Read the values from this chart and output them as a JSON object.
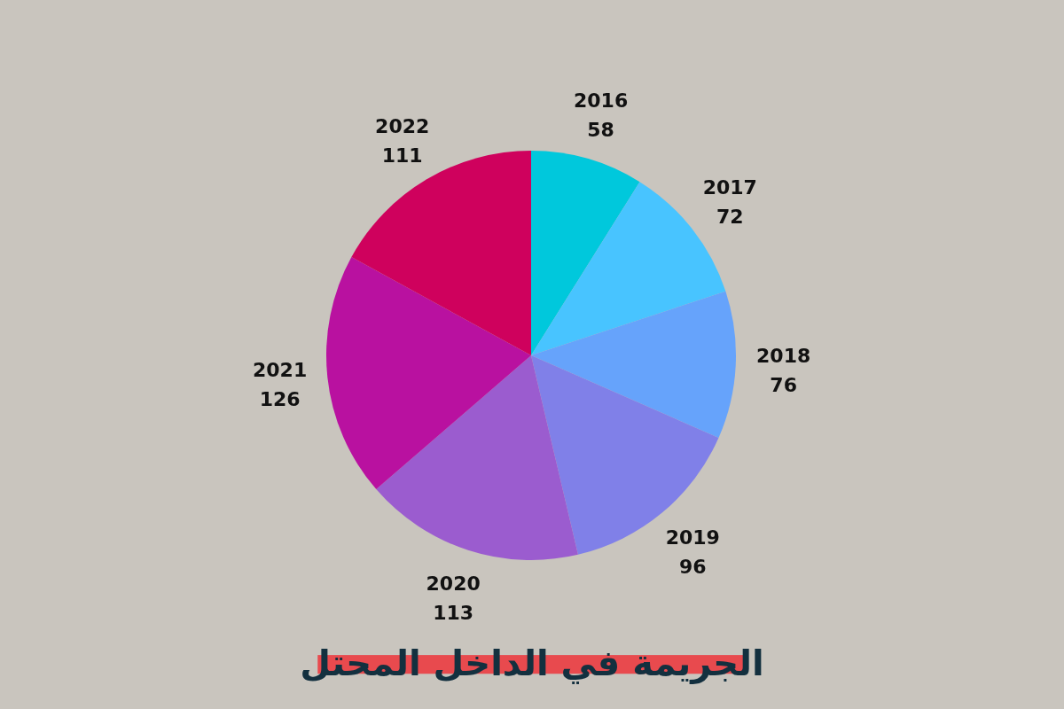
{
  "chart_data": {
    "type": "pie",
    "title": "الجريمة في الداخل المحتل",
    "categories": [
      "2016",
      "2017",
      "2018",
      "2019",
      "2020",
      "2021",
      "2022"
    ],
    "values": [
      58,
      72,
      76,
      96,
      113,
      126,
      111
    ],
    "colors": [
      "#00c8dc",
      "#48c4ff",
      "#66a3fb",
      "#8080e8",
      "#9b5ccf",
      "#b911a0",
      "#cf015d"
    ],
    "data_labels": true
  }
}
